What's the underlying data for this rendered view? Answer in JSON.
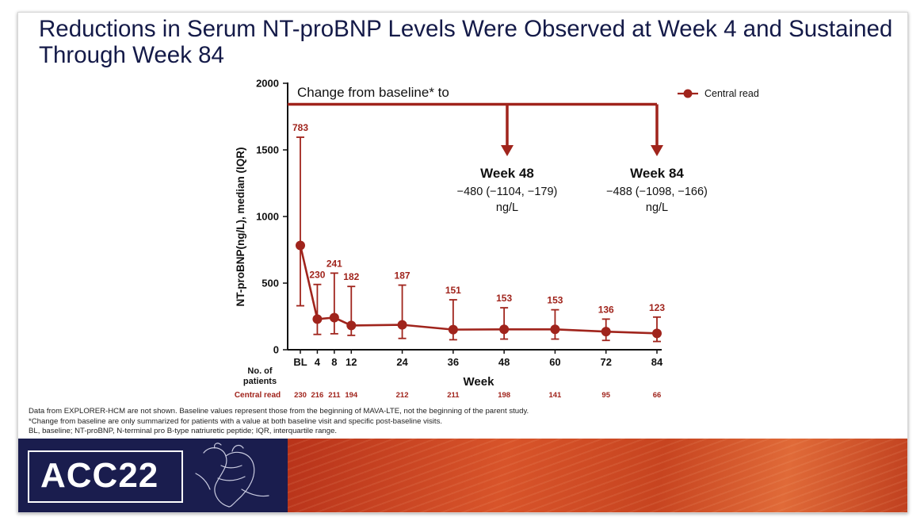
{
  "title": "Reductions in Serum NT-proBNP Levels Were Observed at Week 4 and Sustained Through Week 84",
  "chart_data": {
    "type": "line",
    "ylabel": "NT-proBNP(ng/L), median (IQR)",
    "xlabel": "Week",
    "ylim": [
      0,
      2000
    ],
    "yticks": [
      0,
      500,
      1000,
      1500,
      2000
    ],
    "x": [
      "BL",
      "4",
      "8",
      "12",
      "24",
      "36",
      "48",
      "60",
      "72",
      "84"
    ],
    "x_numeric": [
      0,
      4,
      8,
      12,
      24,
      36,
      48,
      60,
      72,
      84
    ],
    "series": [
      {
        "name": "Central read",
        "color": "#a0241c",
        "values": [
          783,
          230,
          241,
          182,
          187,
          151,
          153,
          153,
          136,
          123
        ],
        "labels": [
          "783",
          "230",
          "241",
          "182",
          "187",
          "151",
          "153",
          "153",
          "136",
          "123"
        ],
        "lower": [
          330,
          115,
          120,
          108,
          85,
          75,
          80,
          80,
          70,
          62
        ],
        "upper": [
          1595,
          490,
          575,
          475,
          485,
          375,
          315,
          300,
          230,
          245
        ]
      }
    ],
    "legend": {
      "label": "Central read",
      "position": "top-right"
    },
    "annotation": {
      "header": "Change from baseline* to",
      "items": [
        {
          "title": "Week 48",
          "value": "−480 (−1104, −179)",
          "unit": "ng/L"
        },
        {
          "title": "Week 84",
          "value": "−488 (−1098, −166)",
          "unit": "ng/L"
        }
      ]
    },
    "patients": {
      "header_line1": "No. of",
      "header_line2": "patients",
      "row_label": "Central read",
      "counts": [
        "230",
        "216",
        "211",
        "194",
        "212",
        "211",
        "198",
        "141",
        "95",
        "66"
      ]
    }
  },
  "footnotes": [
    "Data from EXPLORER-HCM are not shown. Baseline values represent those from the beginning of MAVA-LTE, not the beginning of the parent study.",
    "*Change from baseline are only summarized for patients with a value at both baseline visit and specific post-baseline visits.",
    "BL, baseline; NT-proBNP, N-terminal pro B-type natriuretic peptide; IQR, interquartile range."
  ],
  "logo_text": "ACC22"
}
